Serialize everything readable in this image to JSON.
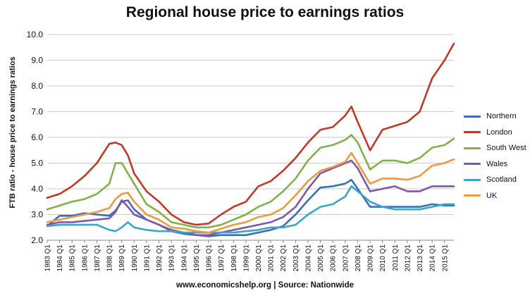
{
  "chart_data": {
    "type": "line",
    "title": "Regional house price to earnings ratios",
    "ylabel": "FTB ratio - house price to earnings ratios",
    "footer": "www.economicshelp.org  | Source: Nationwide",
    "ylim": [
      2.0,
      10.0
    ],
    "yticks": [
      "10.0",
      "9.0",
      "8.0",
      "7.0",
      "6.0",
      "5.0",
      "4.0",
      "3.0",
      "2.0"
    ],
    "xticks": [
      "1983 Q1",
      "1984 Q1",
      "1985 Q1",
      "1986 Q1",
      "1987 Q1",
      "1988 Q1",
      "1989 Q1",
      "1990 Q1",
      "1991 Q1",
      "1992 Q1",
      "1993 Q1",
      "1994 Q1",
      "1995 Q1",
      "1996 Q1",
      "1997 Q1",
      "1998 Q1",
      "1999 Q1",
      "2000 Q1",
      "2001 Q1",
      "2002 Q1",
      "2003 Q1",
      "2004 Q1",
      "2005 Q1",
      "2006 Q1",
      "2007 Q1",
      "2008 Q1",
      "2009 Q1",
      "2010 Q1",
      "2011 Q1",
      "2012 Q1",
      "2013 Q1",
      "2014 Q1",
      "2015 Q1"
    ],
    "x": [
      1983,
      1984,
      1985,
      1986,
      1987,
      1988,
      1988.5,
      1989,
      1989.5,
      1990,
      1991,
      1992,
      1993,
      1994,
      1995,
      1996,
      1997,
      1998,
      1999,
      2000,
      2001,
      2002,
      2003,
      2004,
      2005,
      2006,
      2007,
      2007.5,
      2008,
      2009,
      2010,
      2011,
      2012,
      2013,
      2014,
      2015,
      2015.75
    ],
    "grid": true,
    "legend_position": "right",
    "series": [
      {
        "name": "Northern",
        "color": "#3b6fb5",
        "values": [
          2.55,
          2.95,
          2.95,
          3.05,
          3.0,
          2.95,
          3.15,
          3.5,
          3.55,
          3.2,
          2.8,
          2.6,
          2.35,
          2.25,
          2.2,
          2.15,
          2.2,
          2.2,
          2.2,
          2.3,
          2.4,
          2.55,
          3.0,
          3.55,
          4.05,
          4.1,
          4.2,
          4.35,
          4.0,
          3.3,
          3.3,
          3.3,
          3.3,
          3.3,
          3.4,
          3.35,
          3.35
        ]
      },
      {
        "name": "London",
        "color": "#c0392b",
        "values": [
          3.65,
          3.8,
          4.1,
          4.5,
          5.0,
          5.75,
          5.8,
          5.7,
          5.3,
          4.6,
          3.9,
          3.5,
          3.0,
          2.7,
          2.6,
          2.65,
          3.0,
          3.3,
          3.5,
          4.1,
          4.3,
          4.7,
          5.2,
          5.8,
          6.3,
          6.4,
          6.85,
          7.2,
          6.6,
          5.5,
          6.3,
          6.45,
          6.6,
          7.0,
          8.3,
          9.0,
          9.65
        ]
      },
      {
        "name": "South West",
        "color": "#82b14a",
        "values": [
          3.2,
          3.35,
          3.5,
          3.6,
          3.8,
          4.2,
          5.0,
          5.0,
          4.6,
          4.2,
          3.4,
          3.1,
          2.7,
          2.6,
          2.5,
          2.5,
          2.6,
          2.8,
          3.0,
          3.3,
          3.5,
          3.9,
          4.4,
          5.1,
          5.6,
          5.7,
          5.9,
          6.1,
          5.8,
          4.75,
          5.1,
          5.1,
          5.0,
          5.2,
          5.6,
          5.7,
          5.95
        ]
      },
      {
        "name": "Wales",
        "color": "#7d57a8",
        "values": [
          2.6,
          2.7,
          2.7,
          2.75,
          2.8,
          2.85,
          3.1,
          3.55,
          3.3,
          3.0,
          2.8,
          2.6,
          2.4,
          2.3,
          2.2,
          2.2,
          2.3,
          2.4,
          2.5,
          2.6,
          2.7,
          2.9,
          3.3,
          4.0,
          4.6,
          4.8,
          5.0,
          5.1,
          4.8,
          3.9,
          4.0,
          4.1,
          3.9,
          3.9,
          4.1,
          4.1,
          4.1
        ]
      },
      {
        "name": "Scotland",
        "color": "#39a7c8",
        "values": [
          2.55,
          2.6,
          2.6,
          2.6,
          2.6,
          2.4,
          2.35,
          2.5,
          2.7,
          2.5,
          2.4,
          2.35,
          2.35,
          2.3,
          2.3,
          2.3,
          2.3,
          2.3,
          2.35,
          2.4,
          2.5,
          2.5,
          2.6,
          3.0,
          3.3,
          3.4,
          3.7,
          4.1,
          3.9,
          3.5,
          3.3,
          3.2,
          3.2,
          3.2,
          3.3,
          3.4,
          3.4
        ]
      },
      {
        "name": "UK",
        "color": "#ee9a3e",
        "values": [
          2.7,
          2.8,
          2.9,
          3.0,
          3.1,
          3.25,
          3.6,
          3.8,
          3.85,
          3.5,
          3.0,
          2.8,
          2.5,
          2.45,
          2.35,
          2.3,
          2.45,
          2.6,
          2.7,
          2.9,
          3.0,
          3.25,
          3.75,
          4.3,
          4.7,
          4.85,
          5.05,
          5.4,
          5.0,
          4.2,
          4.4,
          4.4,
          4.35,
          4.5,
          4.9,
          5.0,
          5.15
        ]
      }
    ]
  }
}
